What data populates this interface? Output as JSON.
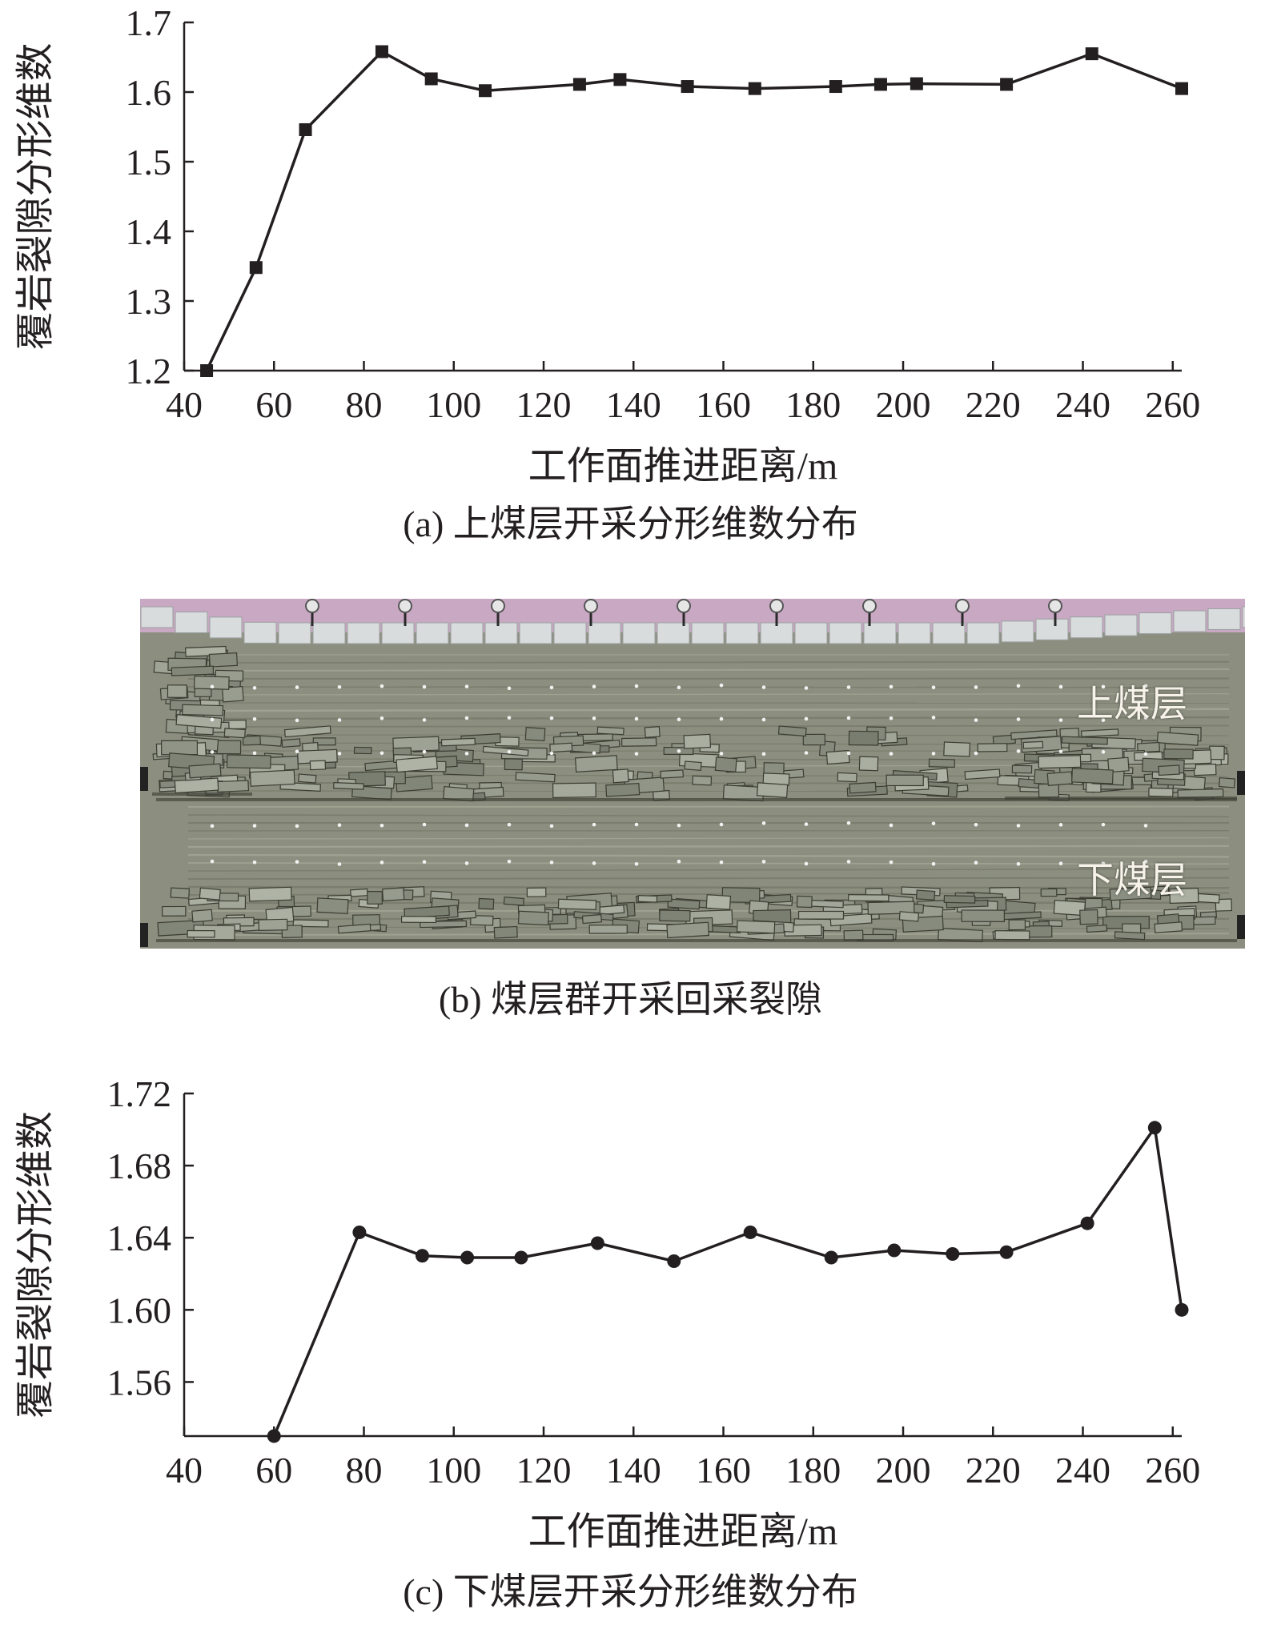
{
  "captions": {
    "a": "(a) 上煤层开采分形维数分布",
    "b": "(b) 煤层群开采回采裂隙",
    "c": "(c) 下煤层开采分形维数分布"
  },
  "photo": {
    "label_upper": "上煤层",
    "label_lower": "下煤层"
  },
  "colors": {
    "line": "#231f20",
    "text": "#231f20",
    "photo_matrix": "#8c8f80",
    "photo_frame": "#c9a8c4",
    "photo_blocks": "#d8dcdc"
  },
  "chart_data": [
    {
      "type": "line",
      "marker": "square",
      "xlabel": "工作面推进距离/m",
      "ylabel": "覆岩裂隙分形维数",
      "xlim": [
        40,
        262
      ],
      "ylim": [
        1.2,
        1.7
      ],
      "xticks": [
        "40",
        "60",
        "80",
        "100",
        "120",
        "140",
        "160",
        "180",
        "200",
        "220",
        "240",
        "260"
      ],
      "yticks": [
        "1.2",
        "1.3",
        "1.4",
        "1.5",
        "1.6",
        "1.7"
      ],
      "x": [
        45,
        56,
        67,
        84,
        95,
        107,
        128,
        137,
        152,
        167,
        185,
        195,
        203,
        223,
        242,
        262
      ],
      "y": [
        1.2,
        1.348,
        1.546,
        1.658,
        1.619,
        1.602,
        1.611,
        1.618,
        1.608,
        1.605,
        1.608,
        1.611,
        1.612,
        1.611,
        1.655,
        1.605
      ]
    },
    {
      "type": "line",
      "marker": "circle",
      "xlabel": "工作面推进距离/m",
      "ylabel": "覆岩裂隙分形维数",
      "xlim": [
        40,
        262
      ],
      "ylim": [
        1.53,
        1.72
      ],
      "xticks": [
        "40",
        "60",
        "80",
        "100",
        "120",
        "140",
        "160",
        "180",
        "200",
        "220",
        "240",
        "260"
      ],
      "yticks": [
        "1.56",
        "1.60",
        "1.64",
        "1.68",
        "1.72"
      ],
      "x": [
        60,
        79,
        93,
        103,
        115,
        132,
        149,
        166,
        184,
        198,
        211,
        223,
        241,
        256,
        262
      ],
      "y": [
        1.53,
        1.643,
        1.63,
        1.629,
        1.629,
        1.637,
        1.627,
        1.643,
        1.629,
        1.633,
        1.631,
        1.632,
        1.648,
        1.701,
        1.6
      ]
    }
  ]
}
